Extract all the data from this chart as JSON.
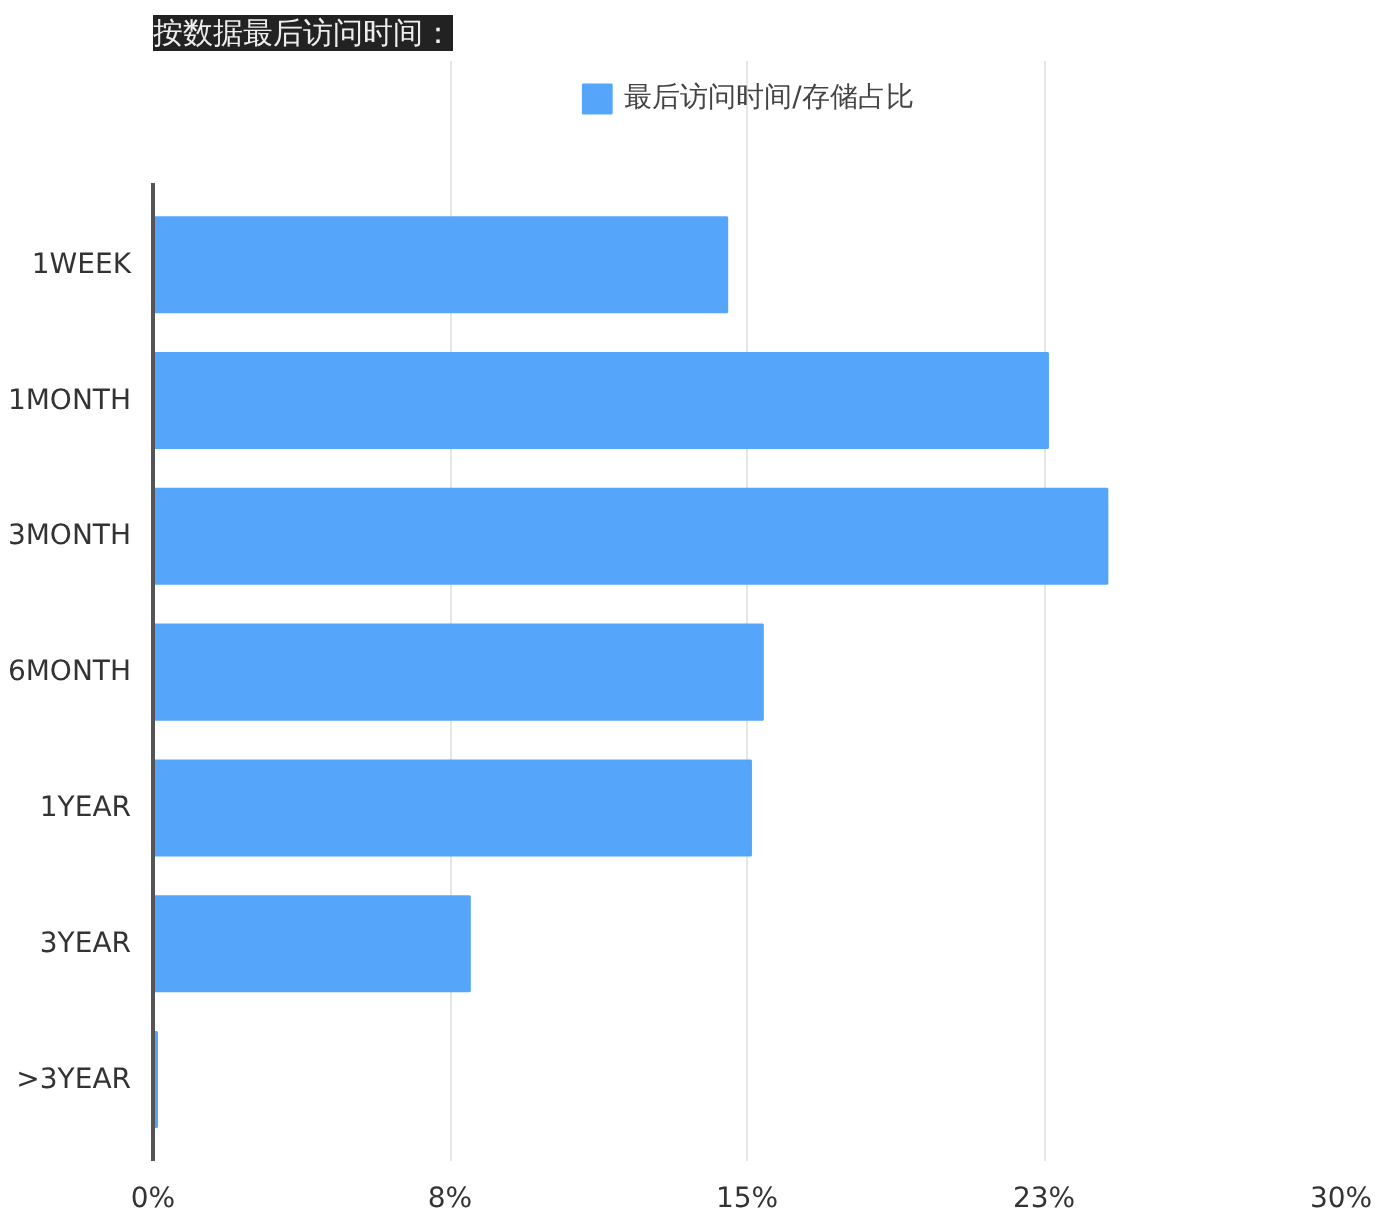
{
  "chart_data": {
    "type": "bar",
    "orientation": "horizontal",
    "title": "按数据最后访问时间：",
    "categories": [
      "1WEEK",
      "1MONTH",
      "3MONTH",
      "6MONTH",
      "1YEAR",
      "3YEAR",
      ">3YEAR"
    ],
    "series": [
      {
        "name": "最后访问时间/存储占比",
        "color": "#55a6fa",
        "values": [
          14.5,
          22.6,
          24.1,
          15.4,
          15.1,
          8.0,
          0.1
        ]
      }
    ],
    "xlim": [
      0,
      30
    ],
    "xticks": [
      {
        "value": 0,
        "label": "0%"
      },
      {
        "value": 7.5,
        "label": "8%"
      },
      {
        "value": 15,
        "label": "15%"
      },
      {
        "value": 22.5,
        "label": "23%"
      },
      {
        "value": 30,
        "label": "30%"
      }
    ],
    "grid": "x",
    "legend": "top"
  }
}
